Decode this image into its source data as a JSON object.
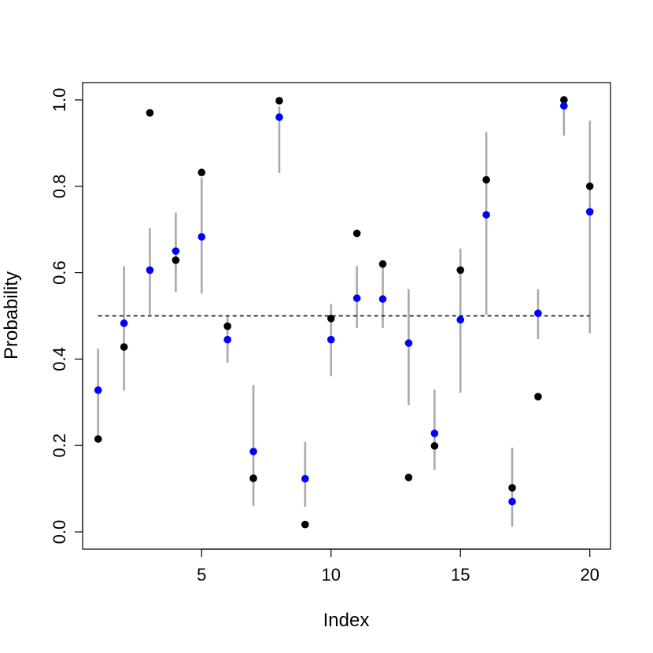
{
  "chart_data": {
    "type": "scatter",
    "title": "",
    "xlabel": "Index",
    "ylabel": "Probability",
    "xlim": [
      0.4,
      20.8
    ],
    "ylim": [
      -0.04,
      1.04
    ],
    "x_ticks": [
      5,
      10,
      15,
      20
    ],
    "y_ticks": [
      0.0,
      0.2,
      0.4,
      0.6,
      0.8,
      1.0
    ],
    "x_tick_labels": [
      "5",
      "10",
      "15",
      "20"
    ],
    "y_tick_labels": [
      "0.0",
      "0.2",
      "0.4",
      "0.6",
      "0.8",
      "1.0"
    ],
    "reference_line": {
      "y": 0.5,
      "x_from": 1,
      "x_to": 20,
      "style": "dashed",
      "color": "#000000"
    },
    "grid": false,
    "legend": "none",
    "x": [
      1,
      2,
      3,
      4,
      5,
      6,
      7,
      8,
      9,
      10,
      11,
      12,
      13,
      14,
      15,
      16,
      17,
      18,
      19,
      20
    ],
    "series": [
      {
        "color": "#000000",
        "values": [
          0.215,
          0.428,
          0.97,
          0.629,
          0.832,
          0.476,
          0.124,
          0.998,
          0.017,
          0.494,
          0.691,
          0.62,
          0.126,
          0.199,
          0.606,
          0.815,
          0.102,
          0.313,
          1.0,
          0.8
        ]
      },
      {
        "color": "#0000ff",
        "values": [
          0.328,
          0.483,
          0.606,
          0.65,
          0.683,
          0.445,
          0.186,
          0.96,
          0.123,
          0.445,
          0.541,
          0.539,
          0.437,
          0.228,
          0.491,
          0.734,
          0.07,
          0.506,
          0.986,
          0.741
        ]
      }
    ],
    "intervals": {
      "color": "#aaaaaa",
      "lower": [
        0.224,
        0.327,
        0.503,
        0.555,
        0.552,
        0.391,
        0.06,
        0.831,
        0.058,
        0.36,
        0.472,
        0.472,
        0.293,
        0.143,
        0.322,
        0.503,
        0.012,
        0.446,
        0.917,
        0.46
      ],
      "upper": [
        0.424,
        0.615,
        0.703,
        0.739,
        0.82,
        0.5,
        0.34,
        0.985,
        0.208,
        0.527,
        0.615,
        0.615,
        0.562,
        0.329,
        0.656,
        0.925,
        0.195,
        0.562,
        0.994,
        0.952
      ]
    }
  }
}
